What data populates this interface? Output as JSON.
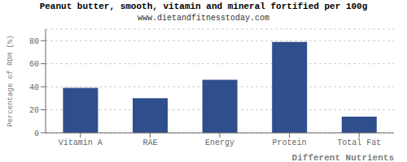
{
  "chart_data": {
    "type": "bar",
    "title": "Peanut butter, smooth, vitamin and mineral fortified per 100g",
    "subtitle": "www.dietandfitnesstoday.com",
    "xlabel": "Different Nutrients",
    "ylabel": "Percentage of RDH (%)",
    "categories": [
      "Vitamin A",
      "RAE",
      "Energy",
      "Protein",
      "Total Fat"
    ],
    "values": [
      39,
      30,
      46,
      79,
      14
    ],
    "color": "#2e4f8c",
    "ylim": [
      0,
      90
    ],
    "yticks": [
      0,
      20,
      40,
      60,
      80
    ],
    "grid": true
  }
}
